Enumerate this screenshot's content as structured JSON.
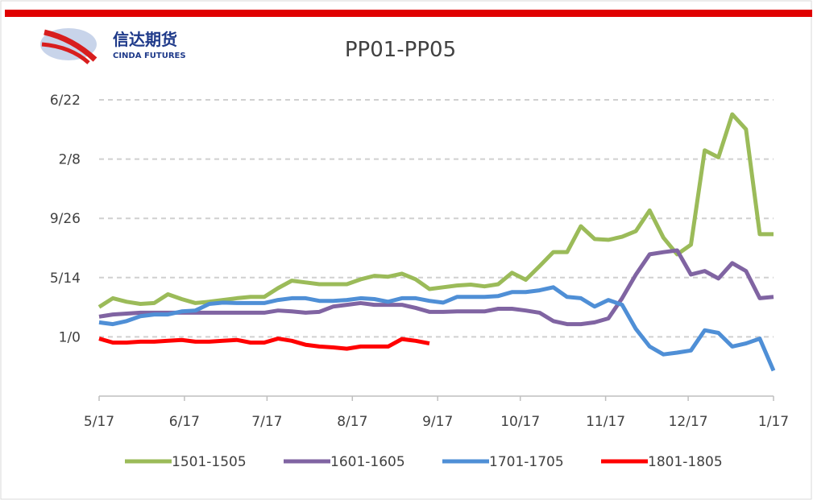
{
  "brand": {
    "name": "信达期货",
    "name_en": "CINDA FUTURES"
  },
  "chart_data": {
    "type": "line",
    "title": "PP01-PP05",
    "x": [
      0,
      5,
      10,
      15,
      20,
      25,
      30,
      35,
      40,
      45,
      50,
      55,
      60,
      65,
      70,
      75,
      80,
      85,
      90,
      95,
      100,
      105,
      110,
      115,
      120,
      125,
      130,
      135,
      140,
      145,
      150,
      155,
      160,
      165,
      170,
      175,
      180,
      185,
      190,
      195,
      200,
      205,
      210,
      215,
      220,
      225,
      230,
      235,
      240,
      245
    ],
    "xlim": [
      0,
      245
    ],
    "xticks": [
      {
        "value": 0,
        "label": "5/17"
      },
      {
        "value": 31,
        "label": "6/17"
      },
      {
        "value": 61,
        "label": "7/17"
      },
      {
        "value": 92,
        "label": "8/17"
      },
      {
        "value": 123,
        "label": "9/17"
      },
      {
        "value": 153,
        "label": "10/17"
      },
      {
        "value": 184,
        "label": "11/17"
      },
      {
        "value": 214,
        "label": "12/17"
      },
      {
        "value": 245,
        "label": "1/17"
      }
    ],
    "ylim": [
      -135,
      540
    ],
    "yticks": [
      {
        "value": 0,
        "label": "1/0"
      },
      {
        "value": 135,
        "label": "5/14"
      },
      {
        "value": 270,
        "label": "9/26"
      },
      {
        "value": 405,
        "label": "2/8"
      },
      {
        "value": 540,
        "label": "6/22"
      }
    ],
    "grid": true,
    "legend": "bottom",
    "series": [
      {
        "name": "1501-1505",
        "color": "#9bbb59",
        "values": [
          68,
          88,
          80,
          75,
          77,
          97,
          86,
          77,
          80,
          84,
          88,
          91,
          91,
          111,
          128,
          124,
          120,
          120,
          120,
          131,
          139,
          137,
          144,
          131,
          109,
          113,
          117,
          119,
          115,
          120,
          146,
          130,
          161,
          193,
          193,
          252,
          223,
          221,
          228,
          241,
          288,
          226,
          188,
          210,
          425,
          409,
          507,
          473,
          234,
          234
        ]
      },
      {
        "name": "1601-1605",
        "color": "#8064a2",
        "values": [
          46,
          51,
          53,
          55,
          55,
          55,
          55,
          55,
          55,
          55,
          55,
          55,
          55,
          60,
          58,
          55,
          57,
          69,
          73,
          77,
          73,
          73,
          73,
          66,
          57,
          57,
          58,
          58,
          58,
          64,
          64,
          60,
          55,
          36,
          29,
          29,
          33,
          42,
          88,
          142,
          188,
          193,
          197,
          142,
          150,
          133,
          168,
          150,
          88,
          91
        ]
      },
      {
        "name": "1701-1705",
        "color": "#4f8fd6",
        "values": [
          33,
          29,
          36,
          47,
          51,
          51,
          58,
          60,
          75,
          78,
          77,
          77,
          77,
          84,
          88,
          88,
          82,
          82,
          84,
          88,
          86,
          80,
          88,
          88,
          82,
          78,
          91,
          91,
          91,
          93,
          102,
          102,
          106,
          113,
          91,
          88,
          69,
          84,
          73,
          18,
          -22,
          -40,
          -36,
          -31,
          15,
          9,
          -22,
          -15,
          -4,
          -77
        ]
      },
      {
        "name": "1801-1805",
        "color": "#ff0000",
        "values": [
          -4,
          -13,
          -13,
          -11,
          -11,
          -9,
          -7,
          -11,
          -11,
          -9,
          -7,
          -13,
          -13,
          -4,
          -9,
          -18,
          -22,
          -24,
          -27,
          -22,
          -22,
          -22,
          -5,
          -9,
          -15,
          null,
          null,
          null,
          null,
          null,
          null,
          null,
          null,
          null,
          null,
          null,
          null,
          null,
          null,
          null,
          null,
          null,
          null,
          null,
          null,
          null,
          null,
          null,
          null,
          null
        ]
      }
    ]
  }
}
